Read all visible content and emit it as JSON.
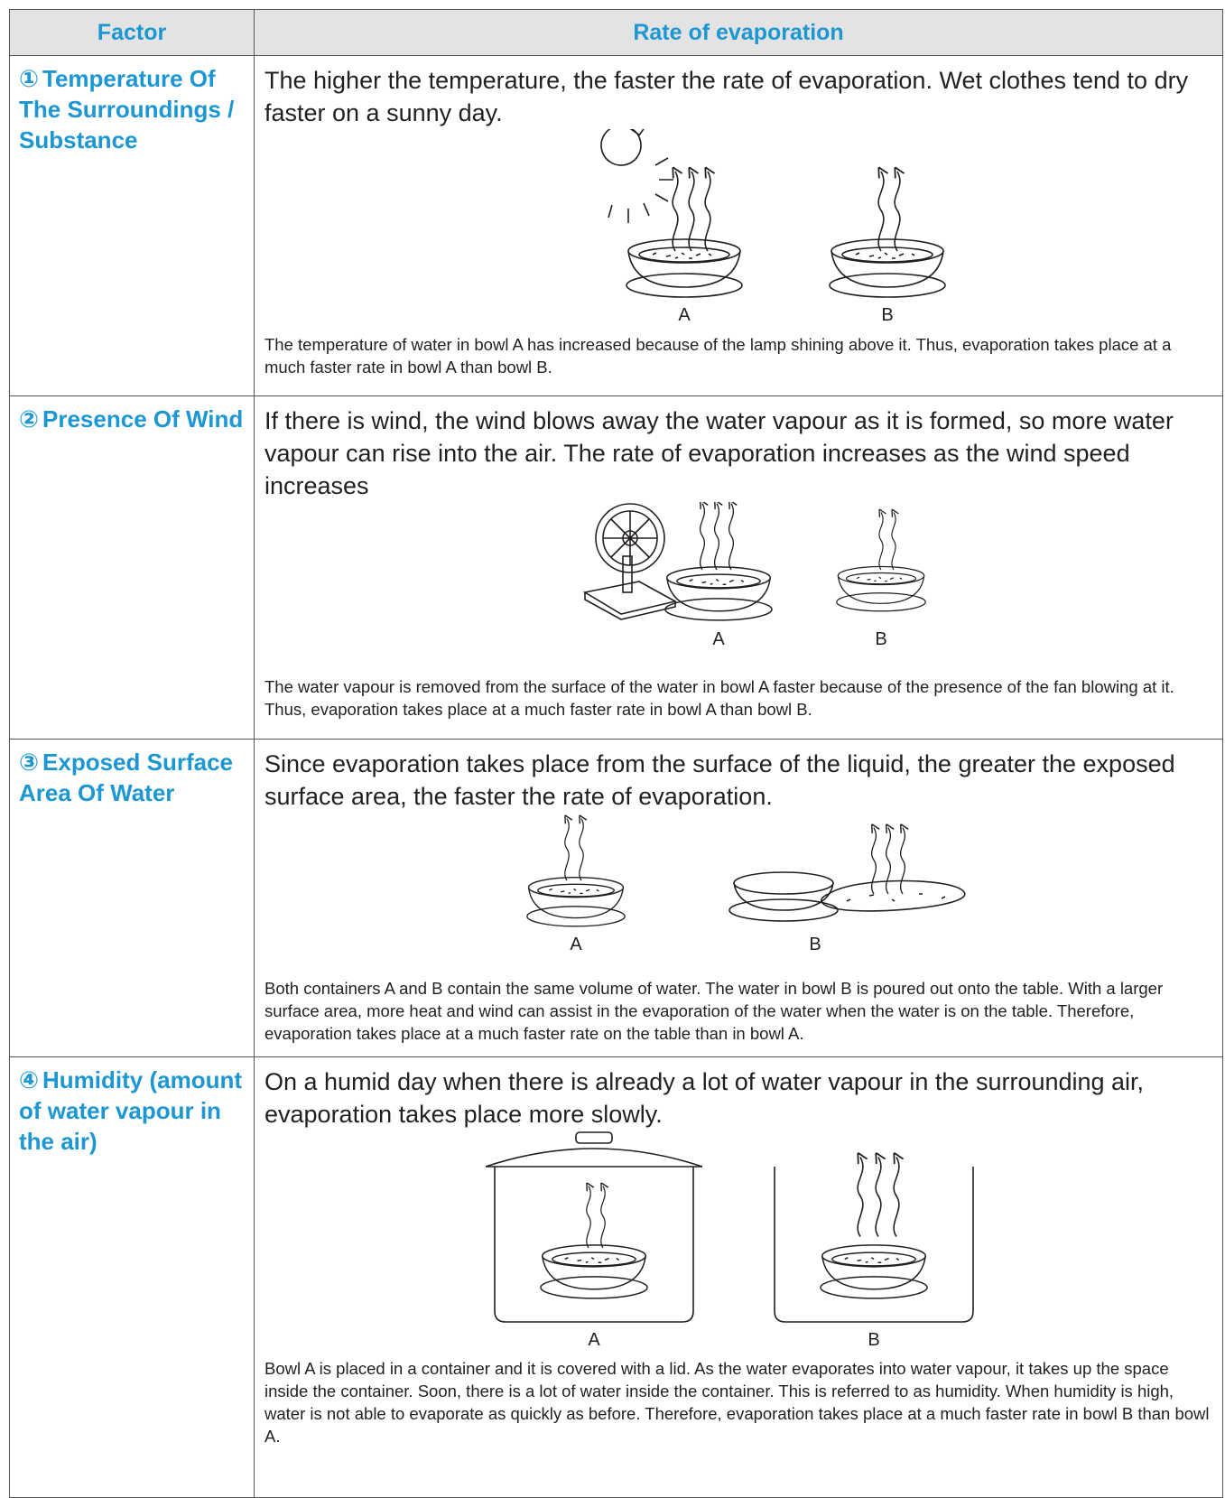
{
  "table": {
    "header": [
      "Factor",
      "Rate of evaporation"
    ],
    "rows": [
      {
        "number": "①",
        "factor": "Temperature Of The Surroundings / Substance",
        "description": "The higher the temperature, the faster the rate of evaporation. Wet clothes tend to dry faster on a sunny day.",
        "labels": [
          "A",
          "B"
        ],
        "caption": "The temperature of water in bowl A has increased because of the lamp shining above it. Thus, evaporation takes place at a much faster rate in bowl A than bowl B."
      },
      {
        "number": "②",
        "factor": "Presence Of Wind",
        "description": "If there is wind, the wind blows away the water vapour as it is formed, so more water vapour can rise into the air. The rate of evaporation increases as the wind speed increases",
        "labels": [
          "A",
          "B"
        ],
        "caption": "The water vapour is removed from the surface of the water in bowl A faster because of the presence of the fan blowing at it. Thus, evaporation takes place at a much faster rate in bowl A than bowl B."
      },
      {
        "number": "③",
        "factor": "Exposed Surface Area Of Water",
        "description": "Since evaporation takes place from the surface of the liquid, the greater the exposed surface area, the faster the rate of evaporation.",
        "labels": [
          "A",
          "B"
        ],
        "caption": "Both containers A and B contain the same volume of water. The water in bowl B is poured out onto the table. With a larger surface area, more heat and wind can assist in the evaporation of the water when the water is on the table. Therefore, evaporation takes place at a much faster rate on the table than in bowl A."
      },
      {
        "number": "④",
        "factor": "Humidity (amount of water vapour in the air)",
        "description": "On a humid day when there is already a lot of water vapour in the surrounding air, evaporation takes place more slowly.",
        "labels": [
          "A",
          "B"
        ],
        "caption": "Bowl A is placed in a container and it is covered with a lid. As the water evaporates into water vapour, it takes up the space inside the container. Soon, there is a lot of water inside the container. This is referred to as humidity. When humidity is high, water is not able to evaporate as quickly as before. Therefore, evaporation takes place at a much faster rate in bowl B than bowl A."
      }
    ]
  }
}
